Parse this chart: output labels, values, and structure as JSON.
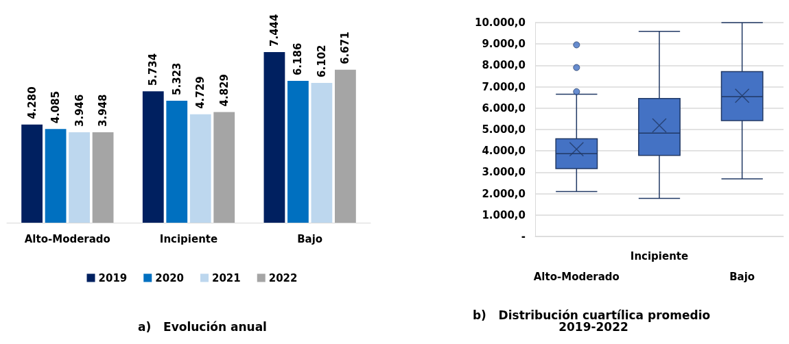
{
  "chart_data": [
    {
      "type": "bar",
      "title": "a)   Evolución anual",
      "categories": [
        "Alto-Moderado",
        "Incipiente",
        "Bajo"
      ],
      "series": [
        {
          "name": "2019",
          "color": "#002060",
          "values": [
            4280,
            5734,
            7444
          ],
          "value_labels": [
            "4.280",
            "5.734",
            "7.444"
          ]
        },
        {
          "name": "2020",
          "color": "#0070c0",
          "values": [
            4085,
            5323,
            6186
          ],
          "value_labels": [
            "4.085",
            "5.323",
            "6.186"
          ]
        },
        {
          "name": "2021",
          "color": "#bdd7ee",
          "values": [
            3946,
            4729,
            6102
          ],
          "value_labels": [
            "3.946",
            "4.729",
            "6.102"
          ]
        },
        {
          "name": "2022",
          "color": "#a5a5a5",
          "values": [
            3948,
            4829,
            6671
          ],
          "value_labels": [
            "3.948",
            "4.829",
            "6.671"
          ]
        }
      ],
      "legend": "bottom",
      "tick_labels": "x"
    },
    {
      "type": "box",
      "title": "b)   Distribución cuartílica promedio 2019-2022",
      "categories": [
        "Alto-Moderado",
        "Incipiente",
        "Bajo"
      ],
      "series": [
        {
          "color": "#4472c4",
          "boxes": [
            {
              "low": 2100,
              "q1": 3170,
              "median": 3870,
              "q3": 4570,
              "high": 6650,
              "mean": 4080,
              "outliers": [
                6770,
                7900,
                8960
              ]
            },
            {
              "low": 1780,
              "q1": 3790,
              "median": 4830,
              "q3": 6450,
              "high": 9590,
              "mean": 5190
            },
            {
              "low": 2690,
              "q1": 5420,
              "median": 6540,
              "q3": 7710,
              "high": 10000,
              "mean": 6580
            }
          ]
        }
      ],
      "ylim": [
        0,
        10000
      ],
      "yticks": [
        {
          "value": 0,
          "label": "-"
        },
        {
          "value": 1000,
          "label": "1.000,0"
        },
        {
          "value": 2000,
          "label": "2.000,0"
        },
        {
          "value": 3000,
          "label": "3.000,0"
        },
        {
          "value": 4000,
          "label": "4.000,0"
        },
        {
          "value": 5000,
          "label": "5.000,0"
        },
        {
          "value": 6000,
          "label": "6.000,0"
        },
        {
          "value": 7000,
          "label": "7.000,0"
        },
        {
          "value": 8000,
          "label": "8.000,0"
        },
        {
          "value": 9000,
          "label": "9.000,0"
        },
        {
          "value": 10000,
          "label": "10.000,0"
        }
      ],
      "grid": "y",
      "marker": "circle",
      "legend": false
    }
  ]
}
